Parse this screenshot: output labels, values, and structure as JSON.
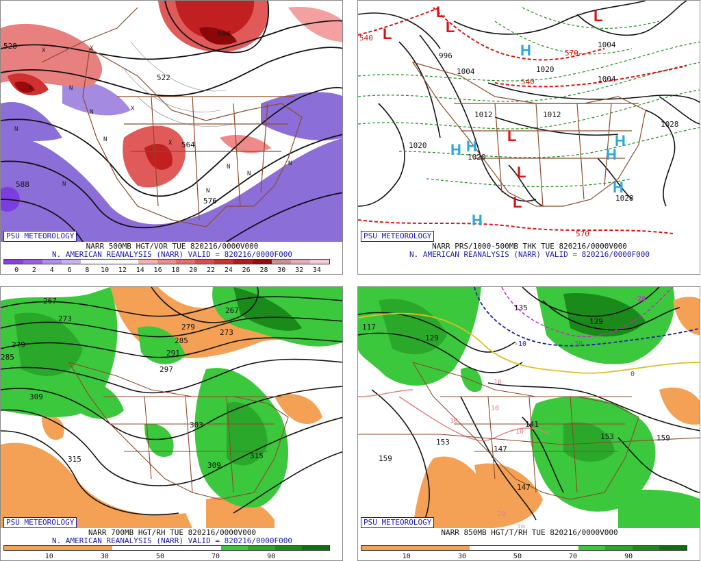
{
  "branding": "PSU METEOROLOGY",
  "colors": {
    "brand_blue": "#1a1ab0",
    "vort_low": "#8c6ed8",
    "vort_high": "#e05a5a",
    "contour": "#111111",
    "border_brown": "#8b4a2a",
    "rh_dry": "#f4a155",
    "rh_moist": "#3cc83c",
    "thickness_red": "#e01010",
    "thickness_green": "#1d8a1d",
    "high_blue": "#2aa7e0",
    "low_red": "#e01010"
  },
  "panels": [
    {
      "id": "vort500",
      "caption_line1": "NARR 500MB HGT/VOR TUE 820216/0000V000",
      "caption_line2": "N. AMERICAN REANALYSIS (NARR) VALID = 820216/0000F000",
      "colorbar_colors": [
        "#8a3ee0",
        "#9a5ae8",
        "#b08af0",
        "#c8b0f4",
        "#ffffff",
        "#ffffff",
        "#ffffff",
        "#f6b0b0",
        "#f08a8a",
        "#ea6a6a",
        "#e04a4a",
        "#d03030",
        "#b81818",
        "#9a0a0a",
        "#c89090",
        "#e8a8b8",
        "#f8c8d8"
      ],
      "ticks": [
        "0",
        "2",
        "4",
        "6",
        "8",
        "10",
        "12",
        "14",
        "16",
        "18",
        "20",
        "22",
        "24",
        "26",
        "28",
        "30",
        "32",
        "34"
      ],
      "contour_labels": [
        "528",
        "588",
        "504",
        "522",
        "564",
        "576"
      ]
    },
    {
      "id": "prs_thk",
      "caption_line1": "NARR PRS/1000-500MB THK TUE 820216/0000V000",
      "caption_line2": "N. AMERICAN REANALYSIS (NARR) VALID = 820216/0000F000",
      "contour_labels": [
        "996",
        "1004",
        "1020",
        "1012",
        "1028",
        "1020",
        "1020",
        "1012",
        "1004",
        "540",
        "570",
        "570",
        "540",
        "1028",
        "1004"
      ],
      "highs": [
        "H",
        "H",
        "H",
        "H",
        "H",
        "H",
        "H"
      ],
      "lows": [
        "L",
        "L",
        "L",
        "L",
        "L",
        "L",
        "L"
      ]
    },
    {
      "id": "rh700",
      "caption_line1": "NARR 700MB HGT/RH TUE 820216/0000V000",
      "caption_line2": "N. AMERICAN REANALYSIS (NARR) VALID = 820216/0000F000",
      "colorbar_colors": [
        "#f4a155",
        "#f4a155",
        "#f4a155",
        "#f4a155",
        "#ffffff",
        "#ffffff",
        "#ffffff",
        "#ffffff",
        "#3cc83c",
        "#2aa82a",
        "#1a8a1a",
        "#0f6f0f"
      ],
      "ticks": [
        "10",
        "30",
        "50",
        "70",
        "90"
      ],
      "contour_labels": [
        "267",
        "273",
        "279",
        "285",
        "279",
        "291",
        "297",
        "303",
        "309",
        "315",
        "315",
        "309",
        "285",
        "267",
        "273"
      ]
    },
    {
      "id": "rh850",
      "caption_line1": "NARR 850MB HGT/T/RH TUE 820216/0000V000",
      "caption_line2": "",
      "colorbar_colors": [
        "#f4a155",
        "#f4a155",
        "#f4a155",
        "#f4a155",
        "#ffffff",
        "#ffffff",
        "#ffffff",
        "#ffffff",
        "#3cc83c",
        "#2aa82a",
        "#1a8a1a",
        "#0f6f0f"
      ],
      "ticks": [
        "10",
        "30",
        "50",
        "70",
        "90"
      ],
      "contour_labels": [
        "135",
        "129",
        "117",
        "129",
        "141",
        "147",
        "153",
        "159",
        "159",
        "153",
        "147"
      ],
      "temp_labels": [
        "-10",
        "-20",
        "-20",
        "10",
        "10",
        "10",
        "10",
        "20",
        "20",
        "0"
      ]
    }
  ]
}
